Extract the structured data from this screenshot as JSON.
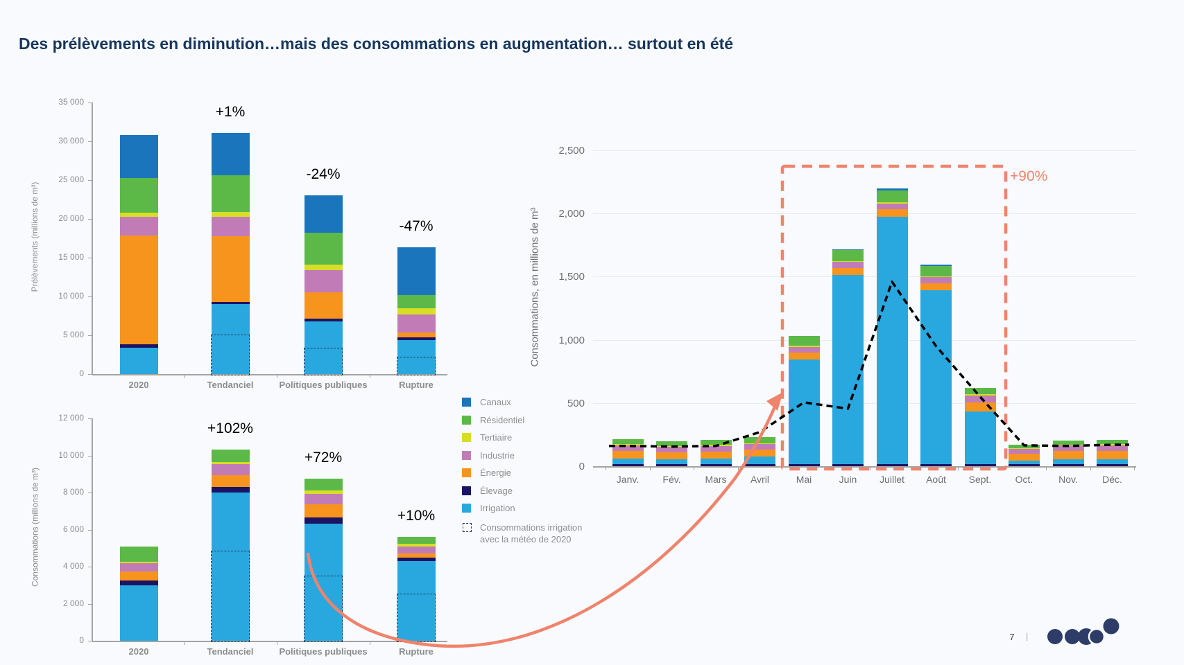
{
  "title": {
    "text": "Des prélèvements en diminution…mais des consommations en augmentation… surtout en été"
  },
  "colors": {
    "canaux": "#1B75BC",
    "residentiel": "#5CB947",
    "tertiaire": "#D6DE26",
    "industrie": "#C17CB8",
    "energie": "#F7941E",
    "elevage": "#1B1464",
    "irrigation": "#29A8E0",
    "accent_salmon": "#F0836C",
    "title_navy": "#17365D",
    "axis_grey": "#A3A3A3",
    "label_grey": "#8C8C8C",
    "label_grey_right": "#6F6F6F",
    "grid_grey": "#E6ECF2",
    "dashed_overlay": "#1F3250",
    "dashed_line_black": "#000000",
    "logo_navy": "#2E3D68",
    "background": "#F8FAFD"
  },
  "legend": {
    "items": [
      {
        "key": "canaux",
        "label": "Canaux"
      },
      {
        "key": "residentiel",
        "label": "Résidentiel"
      },
      {
        "key": "tertiaire",
        "label": "Tertiaire"
      },
      {
        "key": "industrie",
        "label": "Industrie"
      },
      {
        "key": "energie",
        "label": "Énergie"
      },
      {
        "key": "elevage",
        "label": "Élevage"
      },
      {
        "key": "irrigation",
        "label": "Irrigation"
      }
    ],
    "dashed_item": {
      "line1": "Consommations irrigation",
      "line2": "avec la météo de 2020"
    }
  },
  "chart_data": [
    {
      "id": "prelevements",
      "type": "bar",
      "stacked": true,
      "ylabel": "Prélèvements (millions de m³)",
      "ylim": [
        0,
        35000
      ],
      "ytick_labels": [
        "0",
        "5 000",
        "10 000",
        "15 000",
        "20 000",
        "25 000",
        "30 000",
        "35 000"
      ],
      "categories": [
        "2020",
        "Tendanciel",
        "Politiques publiques",
        "Rupture"
      ],
      "series": [
        {
          "key": "irrigation",
          "name": "Irrigation",
          "values": [
            3400,
            9000,
            6800,
            4400
          ]
        },
        {
          "key": "elevage",
          "name": "Élevage",
          "values": [
            450,
            300,
            300,
            300
          ]
        },
        {
          "key": "energie",
          "name": "Énergie",
          "values": [
            14000,
            8500,
            3400,
            700
          ]
        },
        {
          "key": "industrie",
          "name": "Industrie",
          "values": [
            2450,
            2500,
            2900,
            2300
          ]
        },
        {
          "key": "tertiaire",
          "name": "Tertiaire",
          "values": [
            500,
            600,
            700,
            800
          ]
        },
        {
          "key": "residentiel",
          "name": "Résidentiel",
          "values": [
            4500,
            4700,
            4100,
            1700
          ]
        },
        {
          "key": "canaux",
          "name": "Canaux",
          "values": [
            5500,
            5500,
            4800,
            6100
          ]
        }
      ],
      "overlay_dashed_boxes": [
        null,
        5100,
        3400,
        2200
      ],
      "annotations": [
        {
          "category": "Tendanciel",
          "text": "+1%"
        },
        {
          "category": "Politiques publiques",
          "text": "-24%"
        },
        {
          "category": "Rupture",
          "text": "-47%"
        }
      ]
    },
    {
      "id": "consommations_scenarios",
      "type": "bar",
      "stacked": true,
      "ylabel": "Consommations (millions de m³)",
      "ylim": [
        0,
        12000
      ],
      "ytick_labels": [
        "0",
        "2 000",
        "4 000",
        "6 000",
        "8 000",
        "10 000",
        "12 000"
      ],
      "categories": [
        "2020",
        "Tendanciel",
        "Politiques publiques",
        "Rupture"
      ],
      "series": [
        {
          "key": "irrigation",
          "name": "Irrigation",
          "values": [
            3000,
            8000,
            6300,
            4300
          ]
        },
        {
          "key": "elevage",
          "name": "Élevage",
          "values": [
            250,
            300,
            340,
            200
          ]
        },
        {
          "key": "energie",
          "name": "Énergie",
          "values": [
            480,
            640,
            720,
            200
          ]
        },
        {
          "key": "industrie",
          "name": "Industrie",
          "values": [
            440,
            600,
            570,
            400
          ]
        },
        {
          "key": "tertiaire",
          "name": "Tertiaire",
          "values": [
            110,
            120,
            190,
            120
          ]
        },
        {
          "key": "residentiel",
          "name": "Résidentiel",
          "values": [
            800,
            650,
            630,
            400
          ]
        }
      ],
      "overlay_dashed_boxes": [
        null,
        4850,
        3500,
        2550
      ],
      "annotations": [
        {
          "category": "Tendanciel",
          "text": "+102%"
        },
        {
          "category": "Politiques publiques",
          "text": "+72%"
        },
        {
          "category": "Rupture",
          "text": "+10%"
        }
      ]
    },
    {
      "id": "consommations_mensuelles",
      "type": "bar",
      "stacked": true,
      "ylabel": "Consommations, en millions de m³",
      "ylim": [
        0,
        2500
      ],
      "ytick_labels": [
        "0",
        "500",
        "1,000",
        "1,500",
        "2,000",
        "2,500"
      ],
      "categories": [
        "Janv.",
        "Fév.",
        "Mars",
        "Avril",
        "Mai",
        "Juin",
        "Juillet",
        "Août",
        "Sept.",
        "Oct.",
        "Nov.",
        "Déc."
      ],
      "series": [
        {
          "key": "elevage",
          "name": "Élevage",
          "values": [
            15,
            15,
            15,
            15,
            15,
            15,
            15,
            15,
            15,
            15,
            15,
            15
          ]
        },
        {
          "key": "irrigation",
          "name": "Irrigation",
          "values": [
            45,
            40,
            45,
            60,
            830,
            1500,
            1960,
            1380,
            420,
            30,
            40,
            40
          ]
        },
        {
          "key": "energie",
          "name": "Énergie",
          "values": [
            60,
            55,
            55,
            55,
            55,
            55,
            60,
            55,
            70,
            55,
            65,
            65
          ]
        },
        {
          "key": "industrie",
          "name": "Industrie",
          "values": [
            45,
            42,
            45,
            45,
            45,
            45,
            45,
            45,
            55,
            35,
            42,
            45
          ]
        },
        {
          "key": "tertiaire",
          "name": "Tertiaire",
          "values": [
            8,
            8,
            8,
            8,
            8,
            8,
            8,
            8,
            8,
            8,
            8,
            8
          ]
        },
        {
          "key": "residentiel",
          "name": "Résidentiel",
          "values": [
            42,
            40,
            42,
            45,
            80,
            85,
            95,
            80,
            50,
            25,
            35,
            38
          ]
        },
        {
          "key": "canaux",
          "name": "Canaux",
          "values": [
            0,
            0,
            0,
            0,
            0,
            10,
            15,
            10,
            0,
            0,
            0,
            0
          ]
        }
      ],
      "line_dashed": {
        "name": "Consommations irrigation avec la météo de 2020",
        "values": [
          160,
          155,
          160,
          270,
          505,
          455,
          1460,
          950,
          550,
          165,
          160,
          170
        ]
      },
      "highlight": {
        "from": "Mai",
        "to": "Sept.",
        "label": "+90%"
      }
    }
  ],
  "footer": {
    "page": "7",
    "divider": "|"
  }
}
